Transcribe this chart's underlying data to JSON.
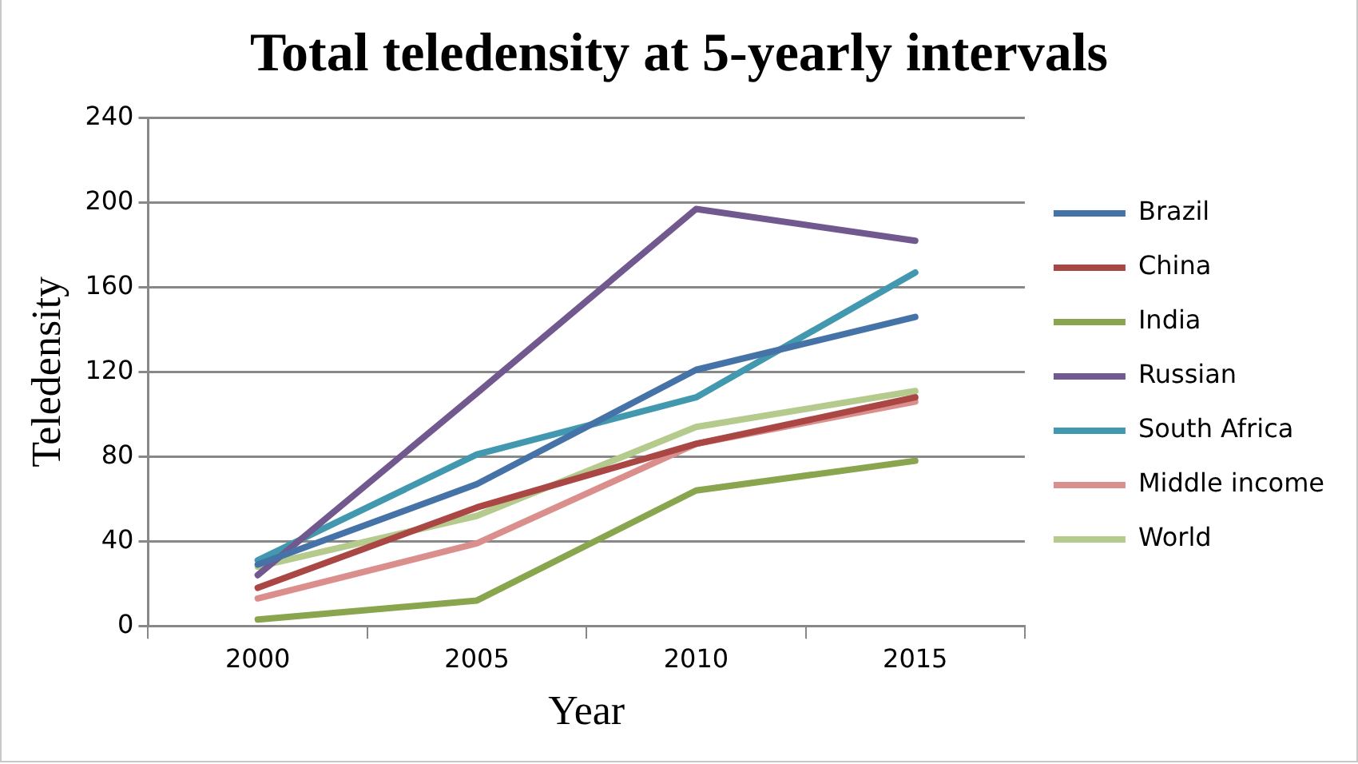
{
  "chart_data": {
    "type": "line",
    "title": "Total teledensity at 5-yearly intervals",
    "xlabel": "Year",
    "ylabel": "Teledensity",
    "categories": [
      "2000",
      "2005",
      "2010",
      "2015"
    ],
    "series": [
      {
        "name": "Brazil",
        "color": "#4572a7",
        "values": [
          29,
          67,
          121,
          146
        ]
      },
      {
        "name": "China",
        "color": "#aa4643",
        "values": [
          18,
          56,
          86,
          108
        ]
      },
      {
        "name": "India",
        "color": "#89a54e",
        "values": [
          3,
          12,
          64,
          78
        ]
      },
      {
        "name": "Russian",
        "color": "#71588f",
        "values": [
          24,
          110,
          197,
          182
        ]
      },
      {
        "name": "South Africa",
        "color": "#4198af",
        "values": [
          31,
          81,
          108,
          167
        ]
      },
      {
        "name": "Middle income",
        "color": "#db8f8c",
        "values": [
          13,
          39,
          86,
          106
        ]
      },
      {
        "name": "World",
        "color": "#b5cb8e",
        "values": [
          28,
          52,
          94,
          111
        ]
      }
    ],
    "ylim": [
      0,
      240
    ],
    "yticks": [
      0,
      40,
      80,
      120,
      160,
      200,
      240
    ],
    "grid": "y",
    "legend": "right",
    "marker": "none",
    "line_style": "solid"
  }
}
